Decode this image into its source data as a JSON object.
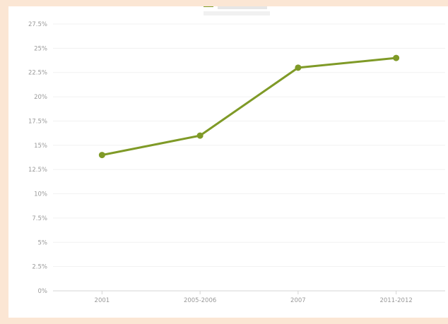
{
  "chart_data": {
    "type": "line",
    "title": "",
    "xlabel": "",
    "ylabel": "",
    "categories": [
      "2001",
      "2005-2006",
      "2007",
      "2011-2012"
    ],
    "series": [
      {
        "name": "",
        "values": [
          14,
          16,
          23,
          24
        ],
        "color": "#7f9a27"
      }
    ],
    "ylim": [
      0,
      27.5
    ],
    "yticks": [
      "0%",
      "2.5%",
      "5%",
      "7.5%",
      "10%",
      "12.5%",
      "15%",
      "17.5%",
      "20%",
      "22.5%",
      "25%",
      "27.5%"
    ],
    "grid": true,
    "legend_position": "top-center"
  }
}
